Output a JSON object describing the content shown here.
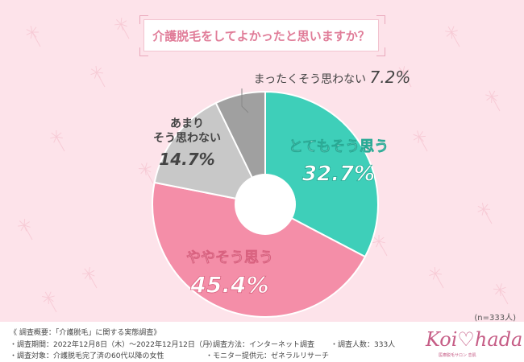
{
  "title": "介護脱毛をしてよかったと思いますか？",
  "n_label": "(n=333人)",
  "colors": {
    "background": "#fde3ea",
    "title_text": "#e07c98",
    "teal": "#3ecfb9",
    "pink": "#f48ea8",
    "light_gray": "#c8c8c8",
    "mid_gray": "#a0a0a0"
  },
  "chart_data": {
    "type": "pie",
    "donut": true,
    "start": "12 o'clock",
    "direction": "clockwise",
    "title": "介護脱毛をしてよかったと思いますか？",
    "slices": [
      {
        "label": "とてもそう思う",
        "value": 32.7,
        "value_text": "32.7%",
        "color": "#3ecfb9"
      },
      {
        "label": "ややそう思う",
        "value": 45.4,
        "value_text": "45.4%",
        "color": "#f48ea8"
      },
      {
        "label": "あまり\nそう思わない",
        "label_lines": [
          "あまり",
          "そう思わない"
        ],
        "value": 14.7,
        "value_text": "14.7%",
        "color": "#c8c8c8"
      },
      {
        "label": "まったくそう思わない",
        "value": 7.2,
        "value_text": "7.2%",
        "color": "#a0a0a0"
      }
    ]
  },
  "footer": {
    "overview": "《 調査概要：「介護脱毛」に関する実態調査》",
    "period": "・調査期間：2022年12月8日（木）〜2022年12月12日（月）",
    "target": "・調査対象：介護脱毛完了済の60代以降の女性",
    "method": "・調査方法：インターネット調査",
    "provider": "・モニター提供元：ゼネラルリサーチ",
    "count": "・調査人数：333人"
  },
  "brand": {
    "name": "Koi♡hada",
    "tagline": "医療脱毛サロン 恋肌"
  }
}
